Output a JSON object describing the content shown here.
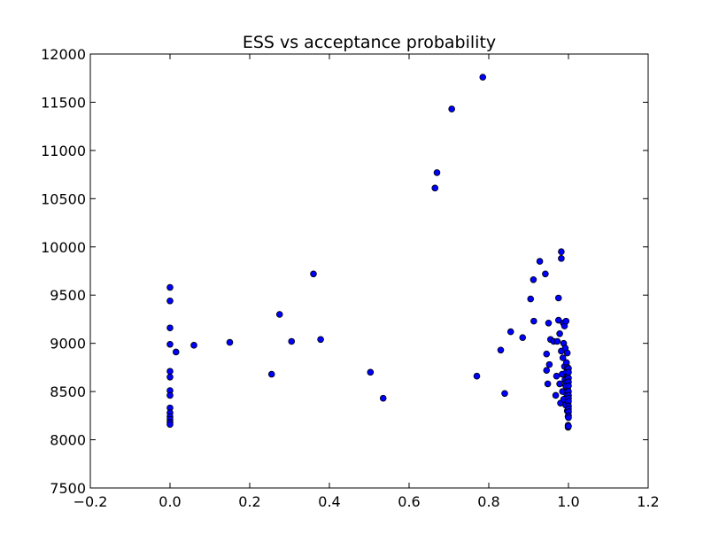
{
  "chart_data": {
    "type": "scatter",
    "title": "ESS vs acceptance probability",
    "xlabel": "",
    "ylabel": "",
    "xlim": [
      -0.2,
      1.2
    ],
    "ylim": [
      7500,
      12000
    ],
    "xticks": [
      -0.2,
      0.0,
      0.2,
      0.4,
      0.6,
      0.8,
      1.0,
      1.2
    ],
    "xtick_labels": [
      "−0.2",
      "0.0",
      "0.2",
      "0.4",
      "0.6",
      "0.8",
      "1.0",
      "1.2"
    ],
    "yticks": [
      7500,
      8000,
      8500,
      9000,
      9500,
      10000,
      10500,
      11000,
      11500,
      12000
    ],
    "ytick_labels": [
      "7500",
      "8000",
      "8500",
      "9000",
      "9500",
      "10000",
      "10500",
      "11000",
      "11500",
      "12000"
    ],
    "grid": false,
    "marker_color": "#0000ff",
    "marker_edge_color": "#000000",
    "points": [
      [
        0.0,
        9580
      ],
      [
        0.0,
        9440
      ],
      [
        0.0,
        9160
      ],
      [
        0.0,
        8990
      ],
      [
        0.0,
        8710
      ],
      [
        0.0,
        8650
      ],
      [
        0.0,
        8510
      ],
      [
        0.0,
        8460
      ],
      [
        0.0,
        8330
      ],
      [
        0.0,
        8280
      ],
      [
        0.0,
        8240
      ],
      [
        0.0,
        8210
      ],
      [
        0.0,
        8180
      ],
      [
        0.0,
        8160
      ],
      [
        0.015,
        8910
      ],
      [
        0.06,
        8980
      ],
      [
        0.15,
        9010
      ],
      [
        0.255,
        8680
      ],
      [
        0.275,
        9300
      ],
      [
        0.305,
        9020
      ],
      [
        0.36,
        9720
      ],
      [
        0.378,
        9040
      ],
      [
        0.503,
        8700
      ],
      [
        0.535,
        8430
      ],
      [
        0.665,
        10610
      ],
      [
        0.67,
        10770
      ],
      [
        0.707,
        11430
      ],
      [
        0.785,
        11760
      ],
      [
        0.77,
        8660
      ],
      [
        0.83,
        8930
      ],
      [
        0.84,
        8480
      ],
      [
        0.855,
        9120
      ],
      [
        0.885,
        9060
      ],
      [
        0.905,
        9460
      ],
      [
        0.912,
        9660
      ],
      [
        0.913,
        9230
      ],
      [
        0.928,
        9850
      ],
      [
        0.942,
        9720
      ],
      [
        0.945,
        8890
      ],
      [
        0.945,
        8720
      ],
      [
        0.948,
        8580
      ],
      [
        0.95,
        9210
      ],
      [
        0.952,
        8780
      ],
      [
        0.955,
        9040
      ],
      [
        0.963,
        9020
      ],
      [
        0.968,
        8460
      ],
      [
        0.97,
        8660
      ],
      [
        0.972,
        9020
      ],
      [
        0.975,
        9470
      ],
      [
        0.975,
        9240
      ],
      [
        0.978,
        9100
      ],
      [
        0.978,
        8580
      ],
      [
        0.98,
        8380
      ],
      [
        0.982,
        9950
      ],
      [
        0.982,
        9880
      ],
      [
        0.982,
        8920
      ],
      [
        0.984,
        8680
      ],
      [
        0.985,
        8500
      ],
      [
        0.986,
        8850
      ],
      [
        0.987,
        9210
      ],
      [
        0.988,
        9000
      ],
      [
        0.988,
        8420
      ],
      [
        0.99,
        9180
      ],
      [
        0.99,
        8760
      ],
      [
        0.991,
        8620
      ],
      [
        0.992,
        8950
      ],
      [
        0.993,
        8560
      ],
      [
        0.993,
        8360
      ],
      [
        0.994,
        9230
      ],
      [
        0.995,
        8800
      ],
      [
        0.995,
        8700
      ],
      [
        0.996,
        8600
      ],
      [
        0.996,
        8470
      ],
      [
        0.997,
        8300
      ],
      [
        0.997,
        8900
      ],
      [
        0.998,
        8750
      ],
      [
        0.998,
        8650
      ],
      [
        0.998,
        8520
      ],
      [
        0.999,
        8420
      ],
      [
        0.999,
        8380
      ],
      [
        0.999,
        8240
      ],
      [
        0.999,
        8150
      ],
      [
        0.999,
        8130
      ],
      [
        1.0,
        8740
      ],
      [
        1.0,
        8700
      ],
      [
        1.0,
        8640
      ],
      [
        1.0,
        8600
      ],
      [
        1.0,
        8560
      ],
      [
        1.0,
        8500
      ],
      [
        1.0,
        8460
      ],
      [
        1.0,
        8430
      ],
      [
        1.0,
        8400
      ],
      [
        1.0,
        8350
      ],
      [
        1.0,
        8320
      ],
      [
        1.0,
        8290
      ],
      [
        1.0,
        8250
      ],
      [
        1.0,
        8230
      ],
      [
        1.0,
        8140
      ]
    ]
  }
}
